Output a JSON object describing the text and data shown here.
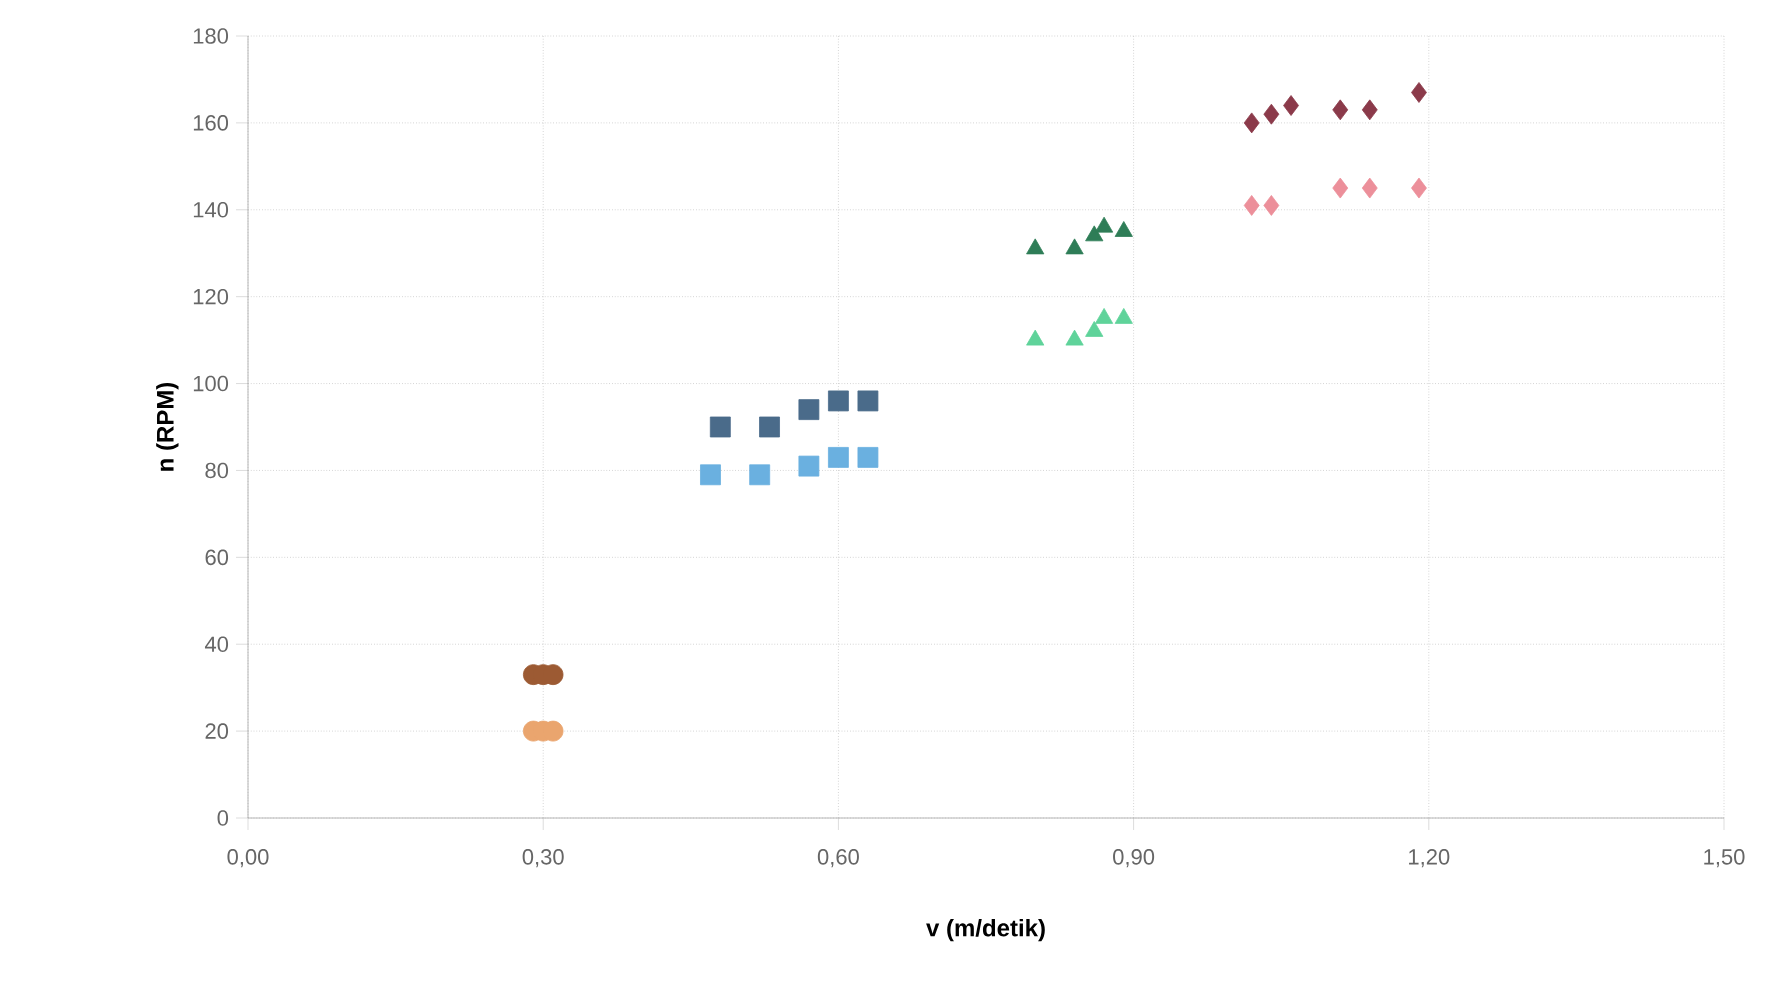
{
  "chart_data": {
    "type": "scatter",
    "xlabel": "v (m/detik)",
    "ylabel": "n (RPM)",
    "xlim": [
      0,
      1.5
    ],
    "ylim": [
      0,
      180
    ],
    "xticks": [
      {
        "value": 0,
        "label": "0,00"
      },
      {
        "value": 0.3,
        "label": "0,30"
      },
      {
        "value": 0.6,
        "label": "0,60"
      },
      {
        "value": 0.9,
        "label": "0,90"
      },
      {
        "value": 1.2,
        "label": "1,20"
      },
      {
        "value": 1.5,
        "label": "1,50"
      }
    ],
    "yticks": [
      0,
      20,
      40,
      60,
      80,
      100,
      120,
      140,
      160,
      180
    ],
    "grid": true,
    "series": [
      {
        "color": "#9c5a33",
        "marker": "circle",
        "x": [
          0.29,
          0.3,
          0.31
        ],
        "values": [
          33,
          33,
          33
        ]
      },
      {
        "color": "#eaa56e",
        "marker": "circle",
        "x": [
          0.29,
          0.3,
          0.31
        ],
        "values": [
          20,
          20,
          20
        ]
      },
      {
        "color": "#4a6b8a",
        "marker": "square",
        "x": [
          0.48,
          0.53,
          0.57,
          0.6,
          0.63
        ],
        "values": [
          90,
          90,
          94,
          96,
          96
        ]
      },
      {
        "color": "#6ab0e0",
        "marker": "square",
        "x": [
          0.47,
          0.52,
          0.57,
          0.6,
          0.63
        ],
        "values": [
          79,
          79,
          81,
          83,
          83
        ]
      },
      {
        "color": "#2e7d57",
        "marker": "triangle",
        "x": [
          0.8,
          0.84,
          0.86,
          0.87,
          0.89
        ],
        "values": [
          131,
          131,
          134,
          136,
          135
        ]
      },
      {
        "color": "#5fd39a",
        "marker": "triangle",
        "x": [
          0.8,
          0.84,
          0.86,
          0.87,
          0.89
        ],
        "values": [
          110,
          110,
          112,
          115,
          115
        ]
      },
      {
        "color": "#8b3a4a",
        "marker": "diamond",
        "x": [
          1.02,
          1.04,
          1.06,
          1.11,
          1.14,
          1.19
        ],
        "values": [
          160,
          162,
          164,
          163,
          163,
          167
        ]
      },
      {
        "color": "#ec8f9a",
        "marker": "diamond",
        "x": [
          1.02,
          1.04,
          1.11,
          1.14,
          1.19
        ],
        "values": [
          141,
          141,
          145,
          145,
          145
        ]
      }
    ]
  }
}
